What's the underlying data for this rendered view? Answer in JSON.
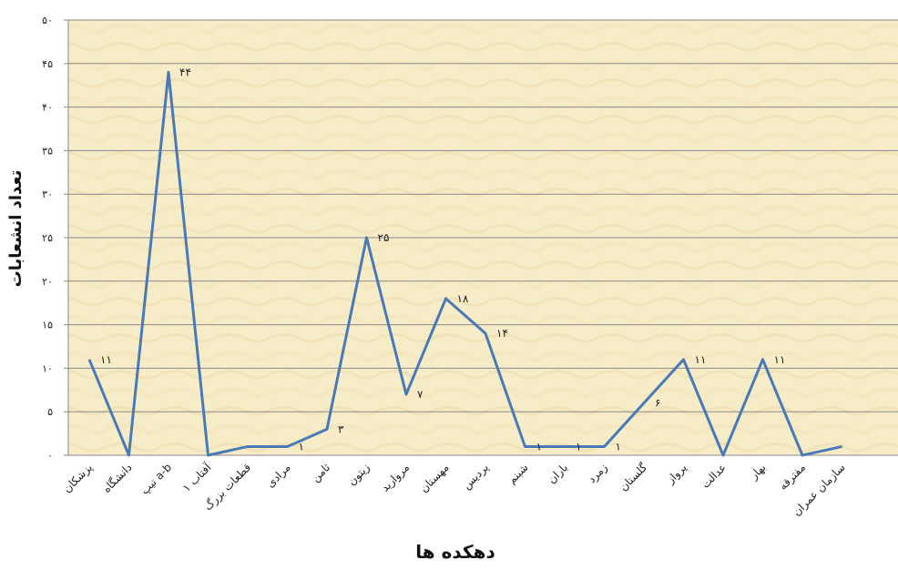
{
  "chart_data": {
    "type": "line",
    "xlabel": "دهکده ها",
    "ylabel": "تعداد انشعابات",
    "ylim": [
      0,
      50
    ],
    "yticks": [
      0,
      5,
      10,
      15,
      20,
      25,
      30,
      35,
      40,
      45,
      50
    ],
    "ytick_labels": [
      "۰",
      "۵",
      "۱۰",
      "۱۵",
      "۲۰",
      "۲۵",
      "۳۰",
      "۳۵",
      "۴۰",
      "۴۵",
      "۵۰"
    ],
    "grid": true,
    "background_color": "#f7ecc8",
    "line_color": "#4a7ab5",
    "categories": [
      "پزشکان",
      "دانشگاه",
      "تیپ a-b",
      "آفتاب ۱",
      "قطعات بزرگ",
      "مرادی",
      "ثامن",
      "زیتون",
      "مروارید",
      "مهستان",
      "پردیس",
      "شبنم",
      "باران",
      "زمرد",
      "گلستان",
      "پرواز",
      "عدالت",
      "بهار",
      "مفترقه",
      "سازمان عمران"
    ],
    "values": [
      11,
      0,
      44,
      0,
      1,
      1,
      3,
      25,
      7,
      18,
      14,
      1,
      1,
      1,
      6,
      11,
      0,
      11,
      0,
      1
    ],
    "data_labels": [
      "۱۱",
      "",
      "۴۴",
      "",
      "",
      "۱",
      "۳",
      "۲۵",
      "۷",
      "۱۸",
      "۱۴",
      "۱",
      "۱",
      "۱",
      "۶",
      "۱۱",
      "",
      "۱۱",
      "",
      ""
    ]
  }
}
